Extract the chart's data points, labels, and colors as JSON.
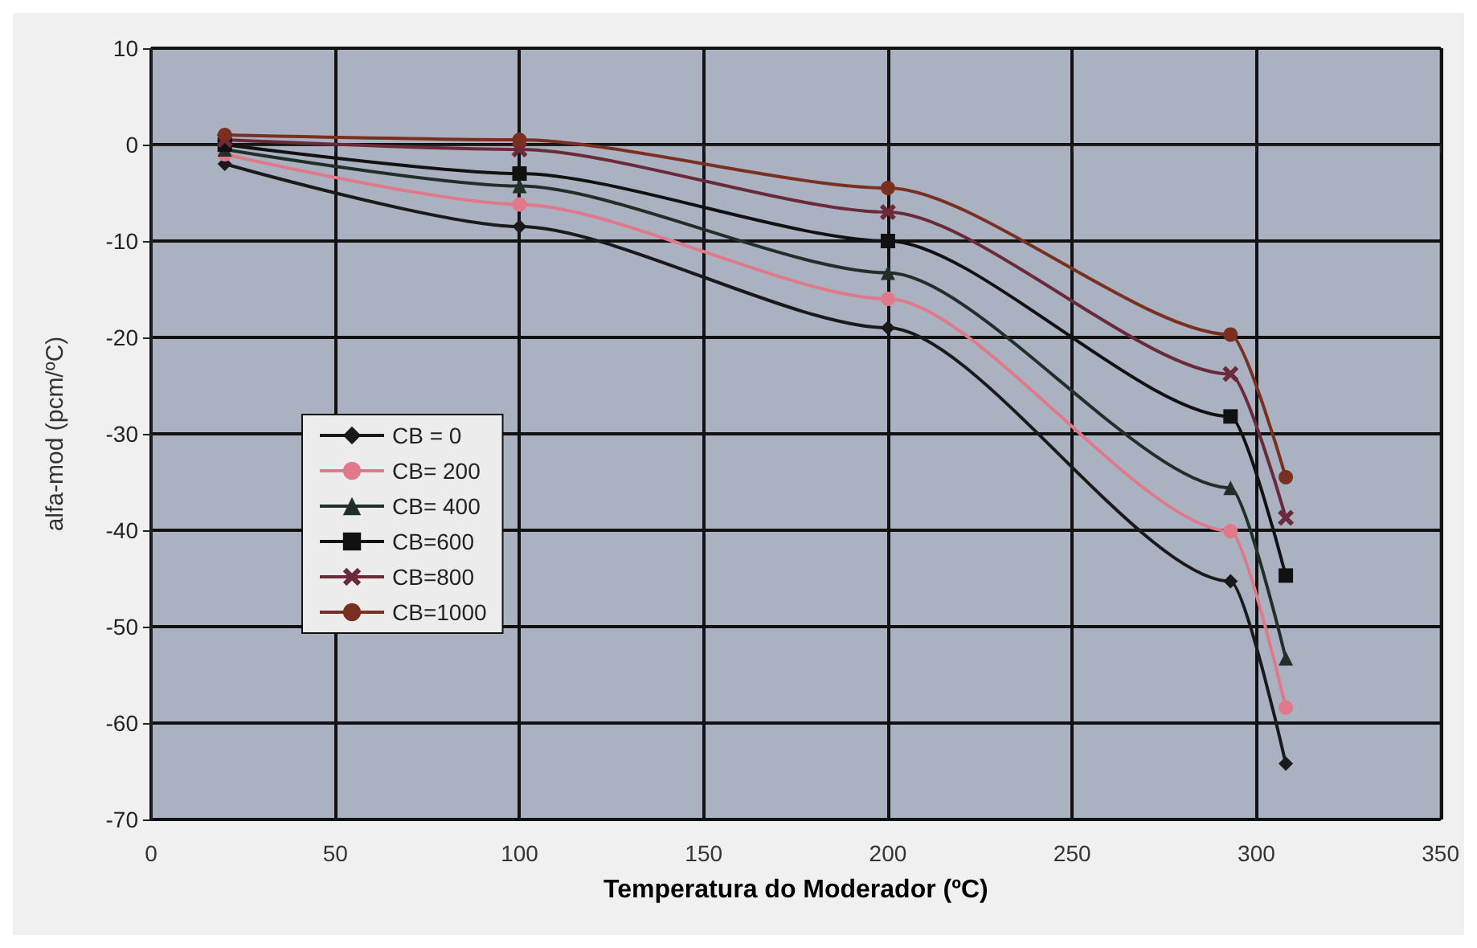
{
  "chart_data": {
    "type": "line",
    "xlabel": "Temperatura do Moderador (ºC)",
    "ylabel": "alfa-mod (pcm/ºC)",
    "xlim": [
      0,
      350
    ],
    "xticks": [
      0,
      50,
      100,
      150,
      200,
      250,
      300,
      350
    ],
    "ylim": [
      -70,
      10
    ],
    "yticks": [
      -70,
      -60,
      -50,
      -40,
      -30,
      -20,
      -10,
      0,
      10
    ],
    "grid": true,
    "legend": "left",
    "x": [
      20,
      100,
      200,
      293,
      308
    ],
    "series": [
      {
        "name": "CB = 0",
        "color": "#1a1a1a",
        "marker": "diamond",
        "values": [
          -2,
          -8.5,
          -19,
          -45.3,
          -64.2
        ]
      },
      {
        "name": "CB= 200",
        "color": "#e07a8a",
        "marker": "circle",
        "values": [
          -1,
          -6.2,
          -16,
          -40.1,
          -58.4
        ]
      },
      {
        "name": "CB= 400",
        "color": "#203028",
        "marker": "triangle",
        "values": [
          -0.5,
          -4.3,
          -13.3,
          -35.6,
          -53.3
        ]
      },
      {
        "name": "CB=600",
        "color": "#111111",
        "marker": "square",
        "values": [
          0,
          -3,
          -10,
          -28.2,
          -44.7
        ]
      },
      {
        "name": "CB=800",
        "color": "#6a2a3a",
        "marker": "cross",
        "values": [
          0.5,
          -0.5,
          -7,
          -23.8,
          -38.7
        ]
      },
      {
        "name": "CB=1000",
        "color": "#7a3020",
        "marker": "circle",
        "values": [
          1,
          0.5,
          -4.5,
          -19.7,
          -34.5
        ]
      }
    ]
  }
}
